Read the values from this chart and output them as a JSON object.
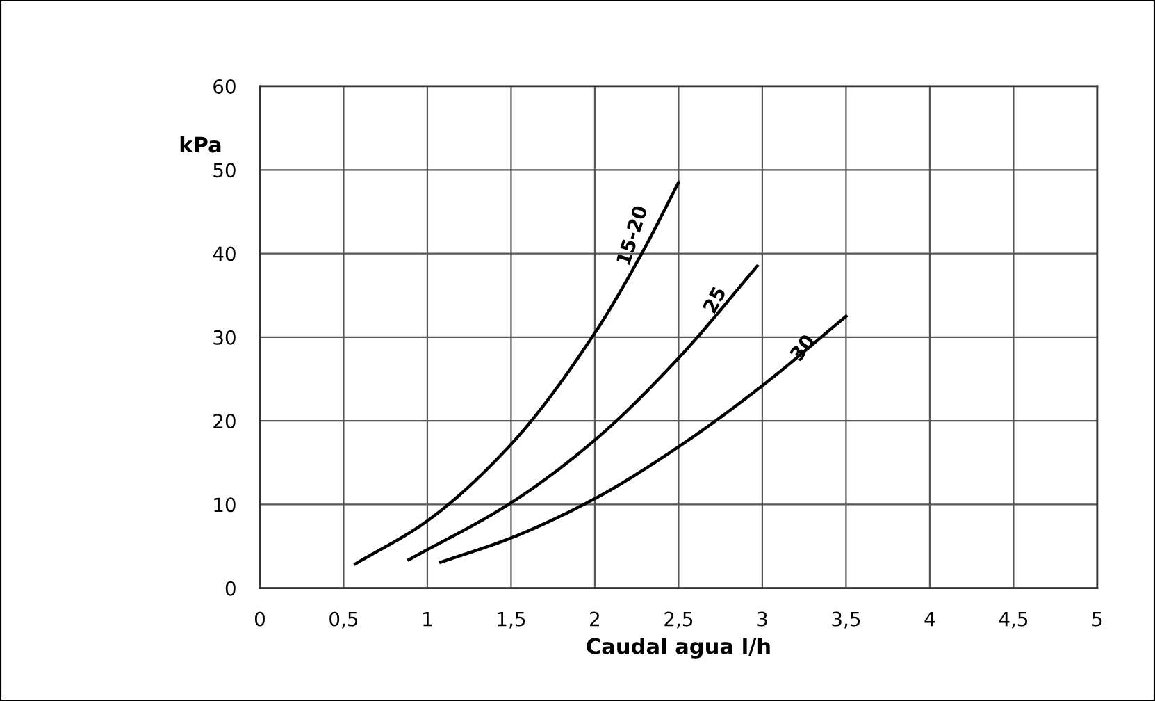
{
  "chart_data": {
    "type": "line",
    "xlabel": "Caudal agua l/h",
    "ylabel": "kPa",
    "xlim": [
      0,
      5
    ],
    "ylim": [
      0,
      60
    ],
    "xticks": [
      0,
      {
        "value": 0.5,
        "label": "0,5"
      },
      1,
      {
        "value": 1.5,
        "label": "1,5"
      },
      2,
      {
        "value": 2.5,
        "label": "2,5"
      },
      3,
      {
        "value": 3.5,
        "label": "3,5"
      },
      4,
      {
        "value": 4.5,
        "label": "4,5"
      },
      5
    ],
    "yticks": [
      0,
      10,
      20,
      30,
      40,
      50,
      60
    ],
    "grid": true,
    "marker": "none",
    "line_style": "solid",
    "series": [
      {
        "name": "15-20",
        "color": "#000000",
        "x": [
          0.57,
          0.99,
          1.5,
          2.0,
          2.28,
          2.5
        ],
        "values": [
          2.9,
          7.9,
          17.2,
          30.5,
          40,
          48.5
        ]
      },
      {
        "name": "25",
        "color": "#000000",
        "x": [
          0.89,
          1.5,
          2.0,
          2.5,
          2.97
        ],
        "values": [
          3.4,
          10.2,
          17.7,
          27.5,
          38.5
        ]
      },
      {
        "name": "30",
        "color": "#000000",
        "x": [
          1.08,
          1.5,
          2.0,
          2.5,
          3.0,
          3.5
        ],
        "values": [
          3.1,
          6,
          10.7,
          16.9,
          24.2,
          32.5
        ]
      }
    ]
  }
}
